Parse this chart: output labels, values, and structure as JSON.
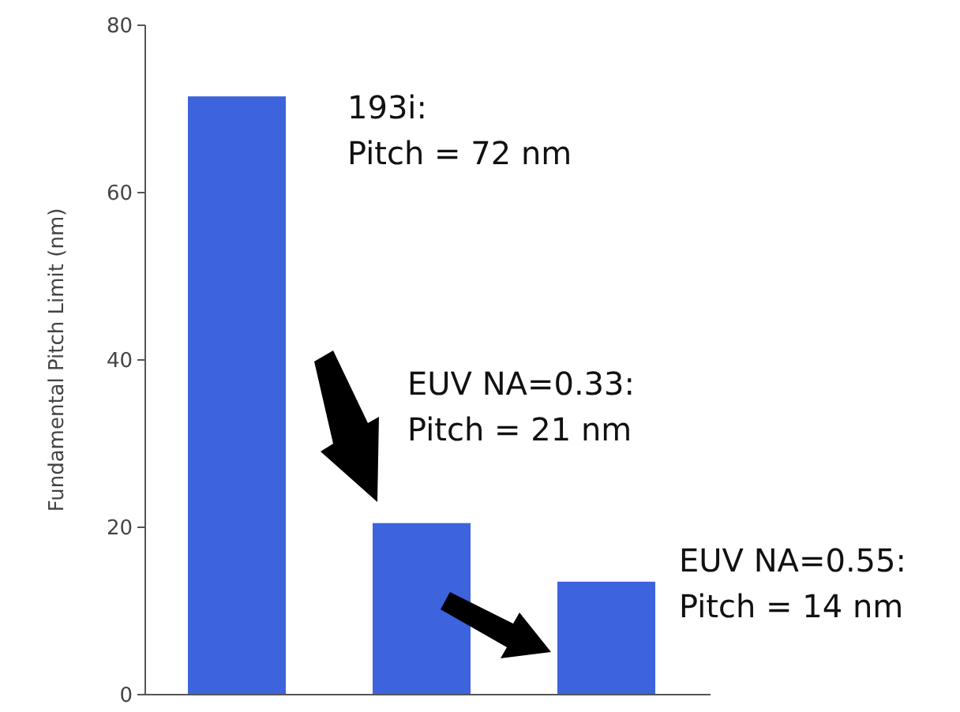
{
  "chart_data": {
    "type": "bar",
    "ylabel": "Fundamental Pitch Limit (nm)",
    "categories": [
      null,
      null,
      null
    ],
    "values": [
      71.5,
      20.5,
      13.5
    ],
    "color": "#3d63dd",
    "ylim": [
      0,
      80
    ],
    "yticks": [
      0,
      20,
      40,
      60,
      80
    ],
    "grid": false,
    "annotations": [
      "193i:\nPitch = 72 nm",
      "EUV NA=0.33:\nPitch = 21 nm",
      "EUV NA=0.55:\nPitch = 14 nm"
    ]
  }
}
